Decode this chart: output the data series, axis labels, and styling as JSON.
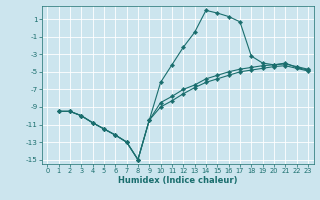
{
  "xlabel": "Humidex (Indice chaleur)",
  "xlim": [
    -0.5,
    23.5
  ],
  "ylim": [
    -15.5,
    2.5
  ],
  "yticks": [
    1,
    -1,
    -3,
    -5,
    -7,
    -9,
    -11,
    -13,
    -15
  ],
  "xticks": [
    0,
    1,
    2,
    3,
    4,
    5,
    6,
    7,
    8,
    9,
    10,
    11,
    12,
    13,
    14,
    15,
    16,
    17,
    18,
    19,
    20,
    21,
    22,
    23
  ],
  "bg_color": "#cce5ee",
  "line_color": "#1a6e6e",
  "grid_color": "#ffffff",
  "line1_x": [
    1,
    2,
    3,
    4,
    5,
    6,
    7,
    8,
    9,
    10,
    11,
    12,
    13,
    14,
    15,
    16,
    17,
    18,
    19,
    20,
    21,
    22,
    23
  ],
  "line1_y": [
    -9.5,
    -9.5,
    -10.0,
    -10.8,
    -11.5,
    -12.2,
    -13.0,
    -15.0,
    -10.5,
    -6.2,
    -4.2,
    -2.2,
    -0.5,
    2.0,
    1.7,
    1.3,
    0.7,
    -3.2,
    -4.0,
    -4.2,
    -4.0,
    -4.5,
    -4.8
  ],
  "line2_x": [
    1,
    2,
    3,
    4,
    5,
    6,
    7,
    8,
    9,
    10,
    11,
    12,
    13,
    14,
    15,
    16,
    17,
    18,
    19,
    20,
    21,
    22,
    23
  ],
  "line2_y": [
    -9.5,
    -9.5,
    -10.0,
    -10.8,
    -11.5,
    -12.2,
    -13.0,
    -15.0,
    -10.5,
    -9.0,
    -8.3,
    -7.5,
    -6.8,
    -6.2,
    -5.8,
    -5.4,
    -5.0,
    -4.8,
    -4.6,
    -4.4,
    -4.3,
    -4.6,
    -4.9
  ],
  "line3_x": [
    1,
    2,
    3,
    4,
    5,
    6,
    7,
    8,
    9,
    10,
    11,
    12,
    13,
    14,
    15,
    16,
    17,
    18,
    19,
    20,
    21,
    22,
    23
  ],
  "line3_y": [
    -9.5,
    -9.5,
    -10.0,
    -10.8,
    -11.5,
    -12.2,
    -13.0,
    -15.0,
    -10.5,
    -8.5,
    -7.8,
    -7.0,
    -6.5,
    -5.8,
    -5.4,
    -5.0,
    -4.7,
    -4.5,
    -4.3,
    -4.2,
    -4.1,
    -4.4,
    -4.7
  ]
}
